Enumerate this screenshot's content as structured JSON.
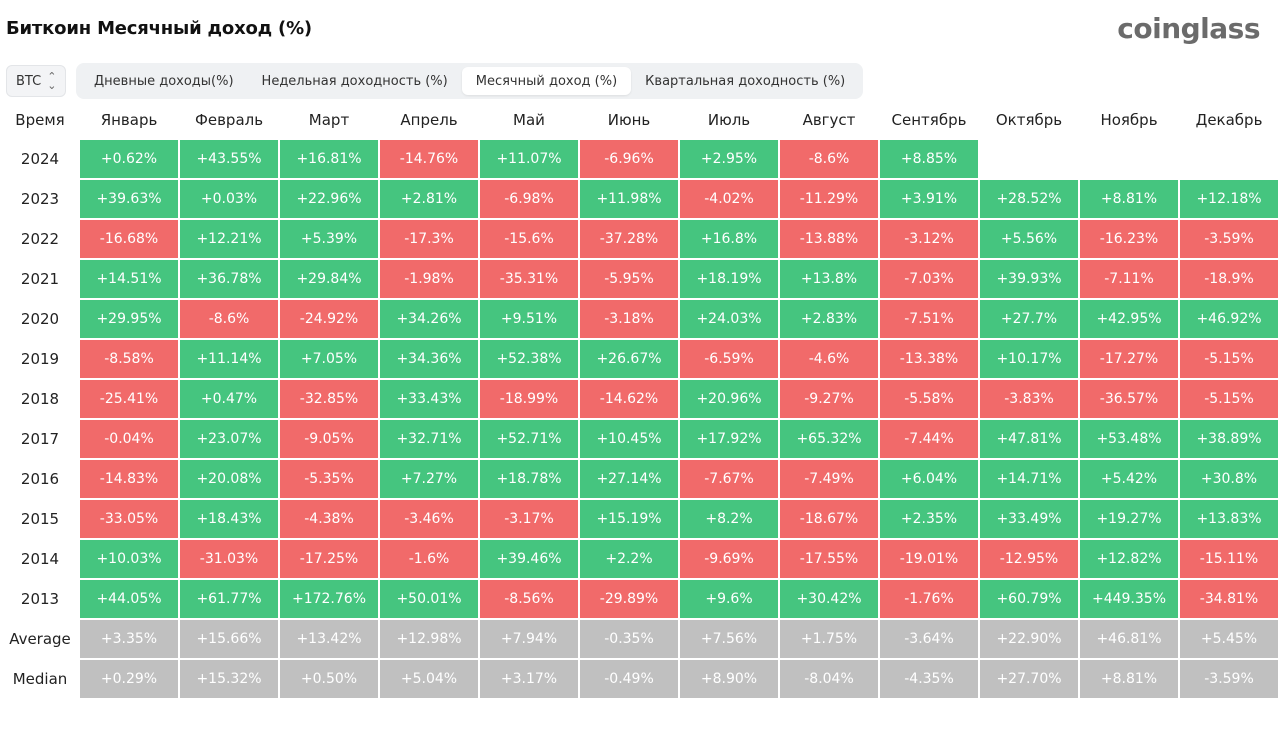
{
  "title": "Биткоин Месячный доход (%)",
  "brand": "coinglass",
  "coin_select": {
    "value": "BTC"
  },
  "tabs": [
    {
      "label": "Дневные доходы(%)",
      "active": false
    },
    {
      "label": "Недельная доходность (%)",
      "active": false
    },
    {
      "label": "Месячный доход (%)",
      "active": true
    },
    {
      "label": "Квартальная доходность (%)",
      "active": false
    }
  ],
  "colors": {
    "positive": "#45c57f",
    "negative": "#f16a6a",
    "stat": "#c0c0c0"
  },
  "table": {
    "headers": [
      "Время",
      "Январь",
      "Февраль",
      "Март",
      "Апрель",
      "Май",
      "Июнь",
      "Июль",
      "Август",
      "Сентябрь",
      "Октябрь",
      "Ноябрь",
      "Декабрь"
    ],
    "rows": [
      {
        "label": "2024",
        "type": "year",
        "values": [
          "+0.62%",
          "+43.55%",
          "+16.81%",
          "-14.76%",
          "+11.07%",
          "-6.96%",
          "+2.95%",
          "-8.6%",
          "+8.85%",
          "",
          "",
          ""
        ]
      },
      {
        "label": "2023",
        "type": "year",
        "values": [
          "+39.63%",
          "+0.03%",
          "+22.96%",
          "+2.81%",
          "-6.98%",
          "+11.98%",
          "-4.02%",
          "-11.29%",
          "+3.91%",
          "+28.52%",
          "+8.81%",
          "+12.18%"
        ]
      },
      {
        "label": "2022",
        "type": "year",
        "values": [
          "-16.68%",
          "+12.21%",
          "+5.39%",
          "-17.3%",
          "-15.6%",
          "-37.28%",
          "+16.8%",
          "-13.88%",
          "-3.12%",
          "+5.56%",
          "-16.23%",
          "-3.59%"
        ]
      },
      {
        "label": "2021",
        "type": "year",
        "values": [
          "+14.51%",
          "+36.78%",
          "+29.84%",
          "-1.98%",
          "-35.31%",
          "-5.95%",
          "+18.19%",
          "+13.8%",
          "-7.03%",
          "+39.93%",
          "-7.11%",
          "-18.9%"
        ]
      },
      {
        "label": "2020",
        "type": "year",
        "values": [
          "+29.95%",
          "-8.6%",
          "-24.92%",
          "+34.26%",
          "+9.51%",
          "-3.18%",
          "+24.03%",
          "+2.83%",
          "-7.51%",
          "+27.7%",
          "+42.95%",
          "+46.92%"
        ]
      },
      {
        "label": "2019",
        "type": "year",
        "values": [
          "-8.58%",
          "+11.14%",
          "+7.05%",
          "+34.36%",
          "+52.38%",
          "+26.67%",
          "-6.59%",
          "-4.6%",
          "-13.38%",
          "+10.17%",
          "-17.27%",
          "-5.15%"
        ]
      },
      {
        "label": "2018",
        "type": "year",
        "values": [
          "-25.41%",
          "+0.47%",
          "-32.85%",
          "+33.43%",
          "-18.99%",
          "-14.62%",
          "+20.96%",
          "-9.27%",
          "-5.58%",
          "-3.83%",
          "-36.57%",
          "-5.15%"
        ]
      },
      {
        "label": "2017",
        "type": "year",
        "values": [
          "-0.04%",
          "+23.07%",
          "-9.05%",
          "+32.71%",
          "+52.71%",
          "+10.45%",
          "+17.92%",
          "+65.32%",
          "-7.44%",
          "+47.81%",
          "+53.48%",
          "+38.89%"
        ]
      },
      {
        "label": "2016",
        "type": "year",
        "values": [
          "-14.83%",
          "+20.08%",
          "-5.35%",
          "+7.27%",
          "+18.78%",
          "+27.14%",
          "-7.67%",
          "-7.49%",
          "+6.04%",
          "+14.71%",
          "+5.42%",
          "+30.8%"
        ]
      },
      {
        "label": "2015",
        "type": "year",
        "values": [
          "-33.05%",
          "+18.43%",
          "-4.38%",
          "-3.46%",
          "-3.17%",
          "+15.19%",
          "+8.2%",
          "-18.67%",
          "+2.35%",
          "+33.49%",
          "+19.27%",
          "+13.83%"
        ]
      },
      {
        "label": "2014",
        "type": "year",
        "values": [
          "+10.03%",
          "-31.03%",
          "-17.25%",
          "-1.6%",
          "+39.46%",
          "+2.2%",
          "-9.69%",
          "-17.55%",
          "-19.01%",
          "-12.95%",
          "+12.82%",
          "-15.11%"
        ]
      },
      {
        "label": "2013",
        "type": "year",
        "values": [
          "+44.05%",
          "+61.77%",
          "+172.76%",
          "+50.01%",
          "-8.56%",
          "-29.89%",
          "+9.6%",
          "+30.42%",
          "-1.76%",
          "+60.79%",
          "+449.35%",
          "-34.81%"
        ]
      },
      {
        "label": "Average",
        "type": "stat",
        "values": [
          "+3.35%",
          "+15.66%",
          "+13.42%",
          "+12.98%",
          "+7.94%",
          "-0.35%",
          "+7.56%",
          "+1.75%",
          "-3.64%",
          "+22.90%",
          "+46.81%",
          "+5.45%"
        ]
      },
      {
        "label": "Median",
        "type": "stat",
        "values": [
          "+0.29%",
          "+15.32%",
          "+0.50%",
          "+5.04%",
          "+3.17%",
          "-0.49%",
          "+8.90%",
          "-8.04%",
          "-4.35%",
          "+27.70%",
          "+8.81%",
          "-3.59%"
        ]
      }
    ]
  }
}
